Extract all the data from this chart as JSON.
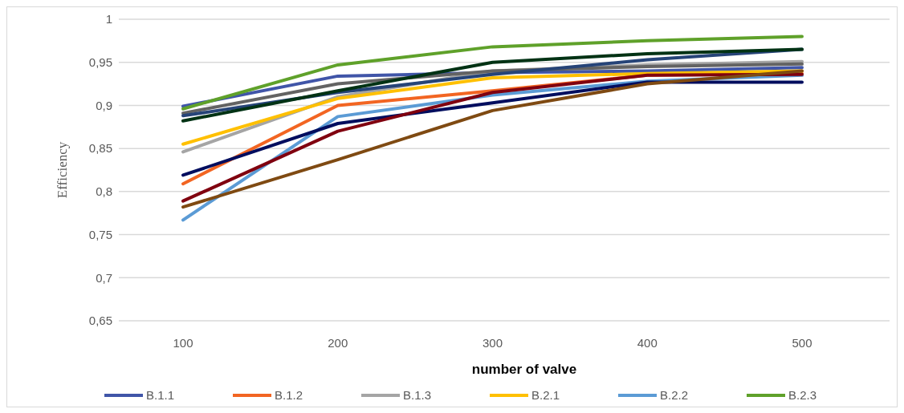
{
  "chart_data": {
    "type": "line",
    "xlabel": "number of valve",
    "ylabel": "Efficiency",
    "categories": [
      "100",
      "200",
      "300",
      "400",
      "500"
    ],
    "ylim": [
      0.65,
      1
    ],
    "yticks": [
      {
        "value": 0.65,
        "label": "0,65"
      },
      {
        "value": 0.7,
        "label": "0,7"
      },
      {
        "value": 0.75,
        "label": "0,75"
      },
      {
        "value": 0.8,
        "label": "0,8"
      },
      {
        "value": 0.85,
        "label": "0,85"
      },
      {
        "value": 0.9,
        "label": "0,9"
      },
      {
        "value": 0.95,
        "label": "0,95"
      },
      {
        "value": 1,
        "label": "1"
      }
    ],
    "grid": "y",
    "legend": "bottom",
    "marker": "none",
    "line_style": "solid",
    "series": [
      {
        "name": "B.1.1",
        "color": "#4055a8",
        "values": [
          0.899,
          0.934,
          0.938,
          0.94,
          0.944
        ]
      },
      {
        "name": "B.1.2",
        "color": "#f26522",
        "values": [
          0.809,
          0.9,
          0.917,
          0.935,
          0.937
        ]
      },
      {
        "name": "B.1.3",
        "color": "#a5a5a5",
        "values": [
          0.846,
          0.91,
          0.94,
          0.947,
          0.951
        ]
      },
      {
        "name": "B.2.1",
        "color": "#ffc000",
        "values": [
          0.855,
          0.908,
          0.932,
          0.937,
          0.94
        ]
      },
      {
        "name": "B.2.2",
        "color": "#5b9bd5",
        "values": [
          0.767,
          0.887,
          0.912,
          0.928,
          0.935
        ]
      },
      {
        "name": "B.2.3",
        "color": "#5fa12a",
        "values": [
          0.896,
          0.947,
          0.968,
          0.975,
          0.98
        ]
      },
      {
        "color": "#636363",
        "values": [
          0.891,
          0.925,
          0.94,
          0.945,
          0.948
        ]
      },
      {
        "color": "#264478",
        "values": [
          0.888,
          0.915,
          0.936,
          0.953,
          0.965
        ]
      },
      {
        "color": "#003214",
        "values": [
          0.882,
          0.917,
          0.95,
          0.96,
          0.965
        ]
      },
      {
        "color": "#000d5e",
        "values": [
          0.819,
          0.879,
          0.903,
          0.927,
          0.927
        ]
      },
      {
        "color": "#80000f",
        "values": [
          0.789,
          0.87,
          0.915,
          0.935,
          0.936
        ]
      },
      {
        "color": "#7f4a12",
        "values": [
          0.782,
          0.837,
          0.894,
          0.925,
          0.94
        ]
      }
    ]
  }
}
